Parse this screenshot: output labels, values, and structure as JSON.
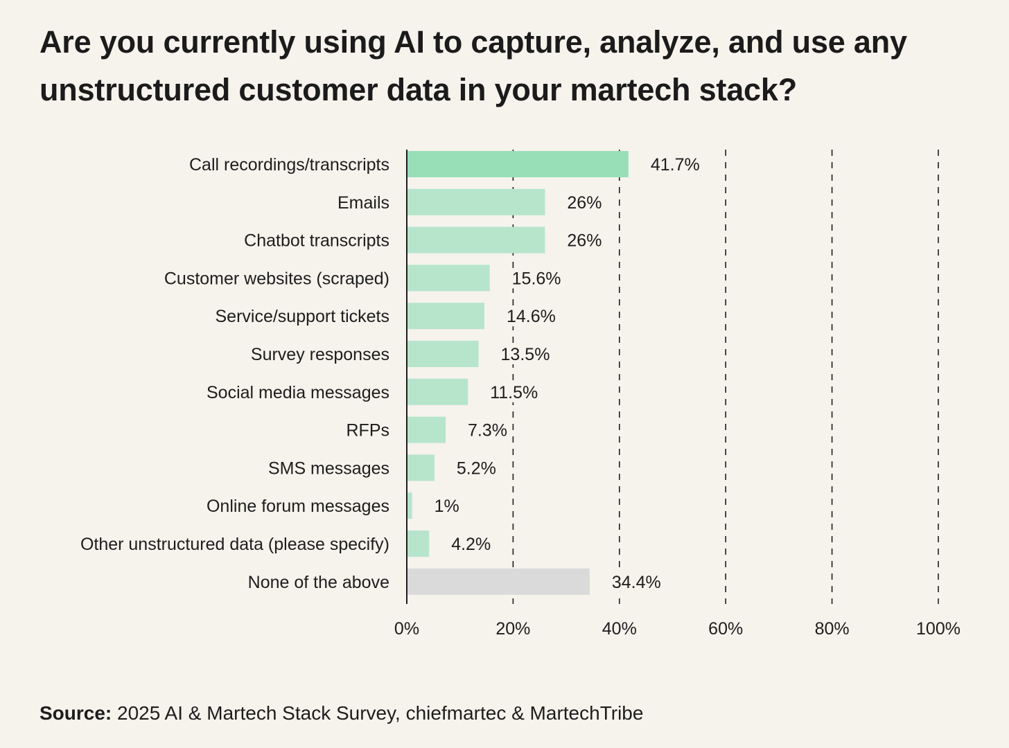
{
  "title": "Are you currently using AI to capture, analyze, and use any unstructured customer data in your martech stack?",
  "source": {
    "label": "Source:",
    "text": "2025 AI & Martech Stack Survey, chiefmartec & MartechTribe"
  },
  "colors": {
    "background": "#f6f2ec",
    "bar_highlight": "#98dfb8",
    "bar_default": "#b6e5cb",
    "bar_none": "#dadada",
    "text": "#1d1d1d",
    "grid": "#1d1d1d"
  },
  "chart_data": {
    "type": "bar",
    "orientation": "horizontal",
    "title": "Are you currently using AI to capture, analyze, and use any unstructured customer data in your martech stack?",
    "xlabel": "",
    "ylabel": "",
    "xlim": [
      0,
      100
    ],
    "grid": "dashed vertical",
    "categories": [
      "Call recordings/transcripts",
      "Emails",
      "Chatbot transcripts",
      "Customer websites (scraped)",
      "Service/support tickets",
      "Survey responses",
      "Social media messages",
      "RFPs",
      "SMS messages",
      "Online forum messages",
      "Other unstructured data (please specify)",
      "None of the above"
    ],
    "values": [
      41.7,
      26,
      26,
      15.6,
      14.6,
      13.5,
      11.5,
      7.3,
      5.2,
      1,
      4.2,
      34.4
    ],
    "labels": [
      "41.7%",
      "26%",
      "26%",
      "15.6%",
      "14.6%",
      "13.5%",
      "11.5%",
      "7.3%",
      "5.2%",
      "1%",
      "4.2%",
      "34.4%"
    ],
    "bar_styles": [
      "highlight",
      "default",
      "default",
      "default",
      "default",
      "default",
      "default",
      "default",
      "default",
      "default",
      "default",
      "none"
    ],
    "ticks": [
      0,
      20,
      40,
      60,
      80,
      100
    ],
    "tick_labels": [
      "0%",
      "20%",
      "40%",
      "60%",
      "80%",
      "100%"
    ]
  }
}
